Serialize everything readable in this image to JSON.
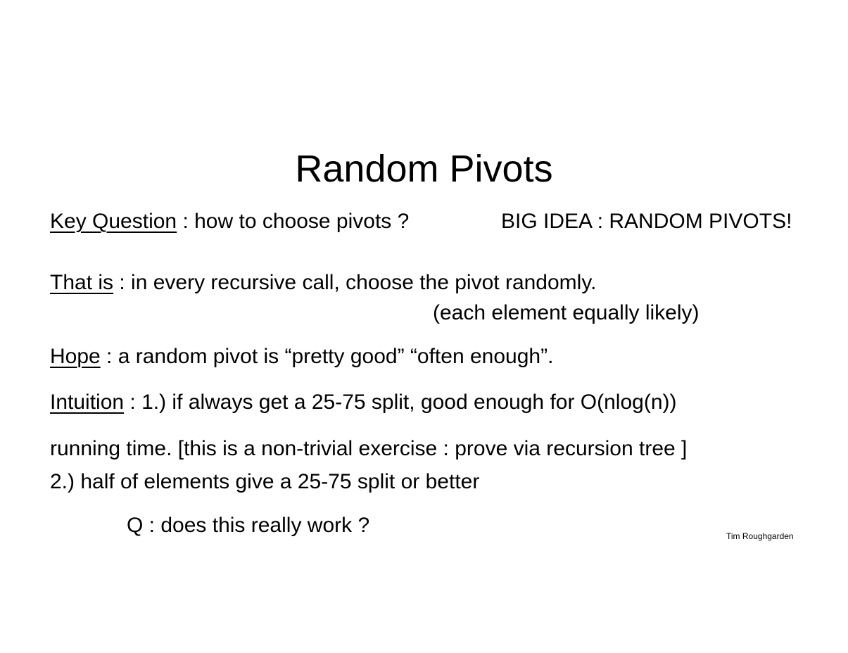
{
  "slide": {
    "title": "Random Pivots",
    "key_question": {
      "label": "Key Question",
      "text": " : how to choose pivots ?",
      "big_idea": "BIG IDEA : RANDOM PIVOTS!"
    },
    "that_is": {
      "label": "That is",
      "text": " : in every recursive call, choose the pivot randomly.",
      "note": "(each element equally likely)"
    },
    "hope": {
      "label": "Hope",
      "text": " : a random pivot is “pretty good”   “often enough”."
    },
    "intuition": {
      "label": "Intuition",
      "text": " : 1.)  if always get a 25-75 split, good enough for O(nlog(n))",
      "continuation": "running time. [this is a non-trivial exercise : prove via recursion tree ]",
      "point2": "2.)  half of elements give a 25-75 split or better"
    },
    "question": "Q : does this really work ?",
    "credit": "Tim Roughgarden"
  }
}
